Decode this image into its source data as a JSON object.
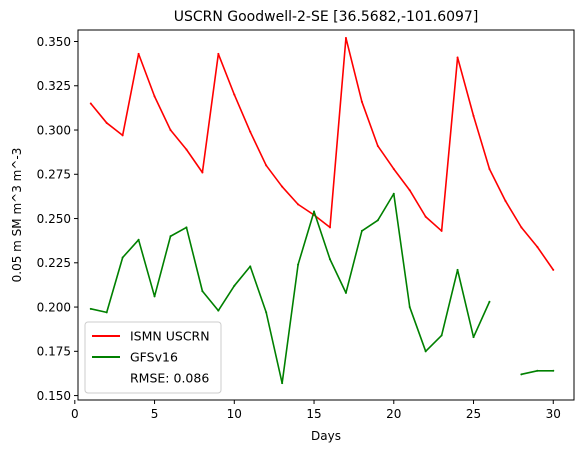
{
  "chart_data": {
    "type": "line",
    "title": "USCRN Goodwell-2-SE [36.5682,-101.6097]",
    "xlabel": "Days",
    "ylabel": "0.05 m SM m^3 m^-3",
    "xlim": [
      0.2,
      31.3
    ],
    "ylim": [
      0.1475,
      0.3565
    ],
    "xticks": [
      0,
      5,
      10,
      15,
      20,
      25,
      30
    ],
    "yticks": [
      0.15,
      0.175,
      0.2,
      0.225,
      0.25,
      0.275,
      0.3,
      0.325,
      0.35
    ],
    "legend_position": "lower-left",
    "legend_note": "RMSE: 0.086",
    "grid": false,
    "series": [
      {
        "name": "ISMN USCRN",
        "color": "#ff0000",
        "x": [
          1,
          2,
          3,
          4,
          5,
          6,
          7,
          8,
          9,
          10,
          11,
          12,
          13,
          14,
          15,
          16,
          17,
          18,
          19,
          20,
          21,
          22,
          23,
          24,
          25,
          26,
          27,
          28,
          29,
          30
        ],
        "y": [
          0.315,
          0.304,
          0.297,
          0.343,
          0.319,
          0.3,
          0.289,
          0.276,
          0.343,
          0.32,
          0.299,
          0.28,
          0.268,
          0.258,
          0.252,
          0.245,
          0.352,
          0.316,
          0.291,
          0.278,
          0.266,
          0.251,
          0.243,
          0.341,
          0.308,
          0.278,
          0.26,
          0.245,
          0.234,
          0.221
        ]
      },
      {
        "name": "GFSv16",
        "color": "#008000",
        "x": [
          1,
          2,
          3,
          4,
          5,
          6,
          7,
          8,
          9,
          10,
          11,
          12,
          13,
          14,
          15,
          16,
          17,
          18,
          19,
          20,
          21,
          22,
          23,
          24,
          25,
          26,
          27,
          28,
          29,
          30
        ],
        "y": [
          0.199,
          0.197,
          0.228,
          0.238,
          0.206,
          0.24,
          0.245,
          0.209,
          0.198,
          0.212,
          0.223,
          0.197,
          0.157,
          0.224,
          0.254,
          0.227,
          0.208,
          0.243,
          0.249,
          0.264,
          0.2,
          0.175,
          0.184,
          0.221,
          0.183,
          0.203,
          null,
          0.162,
          0.164,
          0.164
        ]
      }
    ]
  }
}
